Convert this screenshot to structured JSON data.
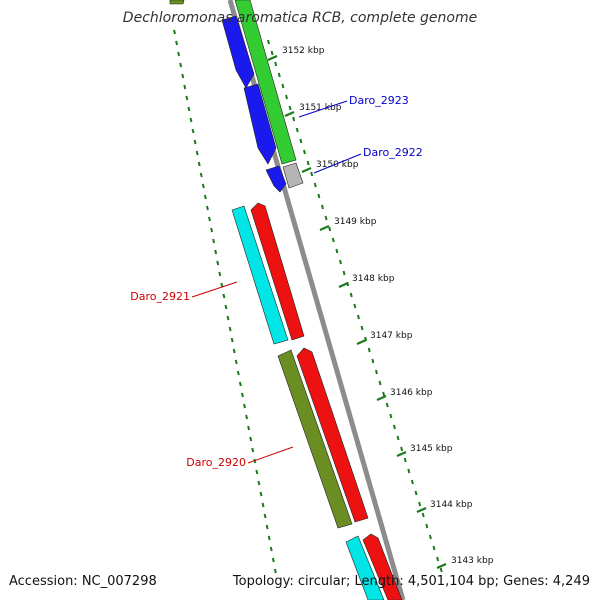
{
  "title": "Dechloromonas aromatica RCB, complete genome",
  "footer": {
    "accession": "Accession: NC_007298",
    "topology": "Topology: circular; Length: 4,501,104 bp; Genes: 4,249"
  },
  "colors": {
    "backbone": "#8c8c8c",
    "ticks": "#1a7a1a",
    "gene_label_forward": "#0000cc",
    "gene_label_reverse": "#cc0000"
  },
  "tick_labels": [
    "3152 kbp",
    "3151 kbp",
    "3150 kbp",
    "3149 kbp",
    "3148 kbp",
    "3147 kbp",
    "3146 kbp",
    "3145 kbp",
    "3144 kbp",
    "3143 kbp"
  ],
  "gene_labels": [
    {
      "name": "Daro_2923",
      "strand": "forward"
    },
    {
      "name": "Daro_2922",
      "strand": "forward"
    },
    {
      "name": "Daro_2921",
      "strand": "reverse"
    },
    {
      "name": "Daro_2920",
      "strand": "reverse"
    }
  ],
  "features": [
    {
      "name": "olive-feature-top",
      "color": "#6b8e23"
    },
    {
      "name": "green-feature",
      "color": "#33cc33"
    },
    {
      "name": "blue-feature-1",
      "color": "#1a1aee"
    },
    {
      "name": "blue-feature-2",
      "color": "#1a1aee"
    },
    {
      "name": "blue-feature-3",
      "color": "#1a1aee"
    },
    {
      "name": "gray-feature",
      "color": "#b5b5b5"
    },
    {
      "name": "cyan-feature-1",
      "color": "#00e5e5"
    },
    {
      "name": "red-feature-1",
      "color": "#ee1111"
    },
    {
      "name": "olive-feature-2",
      "color": "#6b8e23"
    },
    {
      "name": "red-feature-2",
      "color": "#ee1111"
    },
    {
      "name": "cyan-feature-2",
      "color": "#00e5e5"
    },
    {
      "name": "red-feature-3",
      "color": "#ee1111"
    }
  ]
}
